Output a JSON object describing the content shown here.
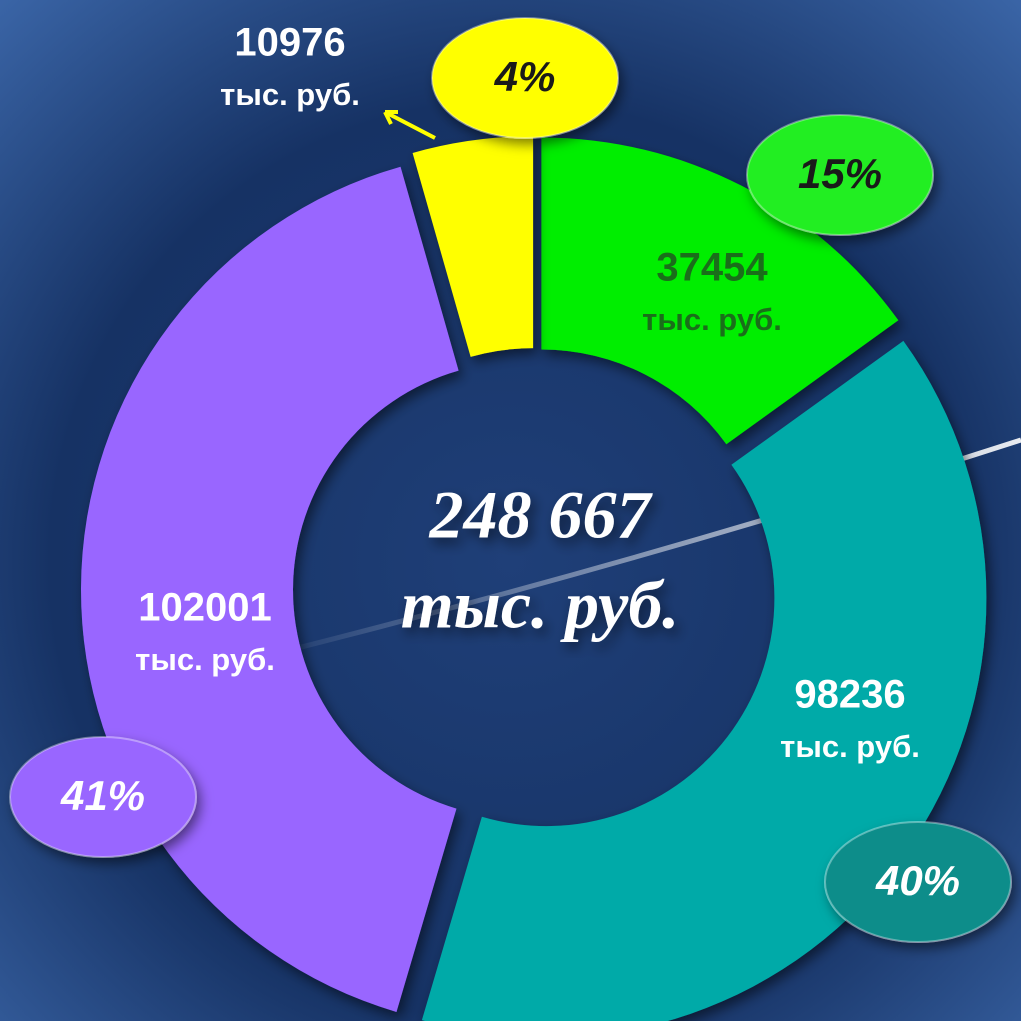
{
  "chart_data": {
    "type": "donut",
    "categories": [
      null,
      null,
      null,
      null
    ],
    "values": [
      37454,
      98236,
      102001,
      10976
    ],
    "colors": [
      "#00ee00",
      "#00aaa8",
      "#9966ff",
      "#ffff00"
    ],
    "percent_labels": [
      "15%",
      "40%",
      "41%",
      "4%"
    ],
    "unit": "тыс. руб.",
    "total_label": "248 667"
  }
}
